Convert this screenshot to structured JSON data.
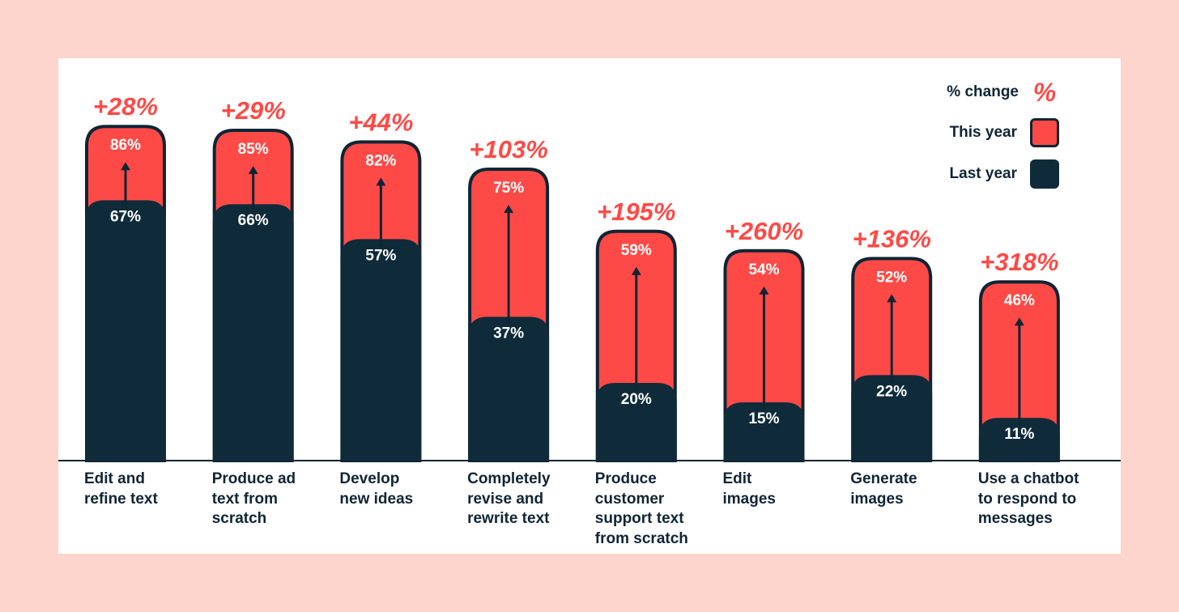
{
  "colors": {
    "page_bg": "#fdd5cc",
    "card_bg": "#ffffff",
    "this_year": "#fe4a47",
    "last_year": "#0f2b3a",
    "outline": "#0f2535",
    "change_text": "#fe4a47"
  },
  "legend": {
    "change_label": "% change",
    "change_symbol": "%",
    "this_year_label": "This year",
    "last_year_label": "Last year"
  },
  "chart_data": {
    "type": "bar",
    "categories": [
      "Edit and\nrefine text",
      "Produce ad\ntext from\nscratch",
      "Develop\nnew ideas",
      "Completely\nrevise and\nrewrite text",
      "Produce\ncustomer\nsupport text\nfrom scratch",
      "Edit\nimages",
      "Generate\nimages",
      "Use a chatbot\nto respond to\nmessages"
    ],
    "series": [
      {
        "name": "This year",
        "values": [
          86,
          85,
          82,
          75,
          59,
          54,
          52,
          46
        ],
        "labels": [
          "86%",
          "85%",
          "82%",
          "75%",
          "59%",
          "54%",
          "52%",
          "46%"
        ]
      },
      {
        "name": "Last year",
        "values": [
          67,
          66,
          57,
          37,
          20,
          15,
          22,
          11
        ],
        "labels": [
          "67%",
          "66%",
          "57%",
          "37%",
          "20%",
          "15%",
          "22%",
          "11%"
        ]
      }
    ],
    "changes": [
      "+28%",
      "+29%",
      "+44%",
      "+103%",
      "+195%",
      "+260%",
      "+136%",
      "+318%"
    ],
    "ylim": [
      0,
      100
    ],
    "legend_position": "top-right",
    "grid": false
  }
}
